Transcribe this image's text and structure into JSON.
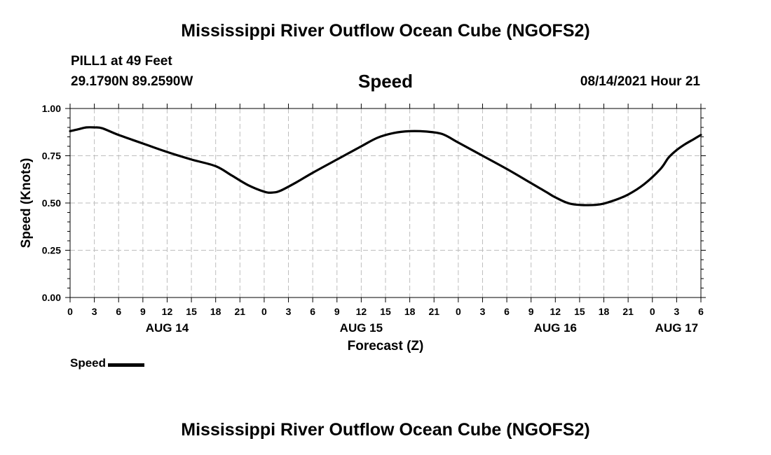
{
  "page_title": "Mississippi River Outflow Ocean Cube (NGOFS2)",
  "footer_title": "Mississippi River Outflow Ocean Cube (NGOFS2)",
  "station": "PILL1 at 49 Feet",
  "coordinates": "29.1790N  89.2590W",
  "datetime": "08/14/2021 Hour 21",
  "chart_data": {
    "type": "line",
    "title": "Speed",
    "xlabel": "Forecast (Z)",
    "ylabel": "Speed (Knots)",
    "ylim": [
      0,
      1.0
    ],
    "xlim_hours": [
      0,
      78
    ],
    "yticks": [
      "0.00",
      "0.25",
      "0.50",
      "0.75",
      "1.00"
    ],
    "xtick_labels": [
      "0",
      "3",
      "6",
      "9",
      "12",
      "15",
      "18",
      "21",
      "0",
      "3",
      "6",
      "9",
      "12",
      "15",
      "18",
      "21",
      "0",
      "3",
      "6",
      "9",
      "12",
      "15",
      "18",
      "21",
      "0",
      "3",
      "6"
    ],
    "date_labels": [
      {
        "label": "AUG 14",
        "hour": 12
      },
      {
        "label": "AUG 15",
        "hour": 36
      },
      {
        "label": "AUG 16",
        "hour": 60
      },
      {
        "label": "AUG 17",
        "hour": 75
      }
    ],
    "grid": true,
    "legend": "bottom-left",
    "series": [
      {
        "name": "Speed",
        "color": "#000000",
        "x": [
          0,
          1,
          2,
          3,
          4,
          6,
          9,
          12,
          15,
          18,
          20,
          22,
          24,
          25,
          26,
          28,
          30,
          33,
          36,
          38,
          40,
          42,
          44,
          46,
          48,
          51,
          54,
          57,
          58,
          59,
          60,
          62,
          65,
          67,
          69,
          71,
          73,
          74,
          75,
          76,
          77,
          78
        ],
        "values": [
          0.88,
          0.89,
          0.9,
          0.9,
          0.895,
          0.86,
          0.815,
          0.77,
          0.73,
          0.695,
          0.645,
          0.595,
          0.56,
          0.555,
          0.565,
          0.61,
          0.66,
          0.73,
          0.8,
          0.845,
          0.87,
          0.88,
          0.878,
          0.865,
          0.82,
          0.75,
          0.68,
          0.605,
          0.58,
          0.555,
          0.53,
          0.495,
          0.49,
          0.51,
          0.545,
          0.6,
          0.68,
          0.74,
          0.78,
          0.81,
          0.835,
          0.86
        ]
      }
    ]
  }
}
